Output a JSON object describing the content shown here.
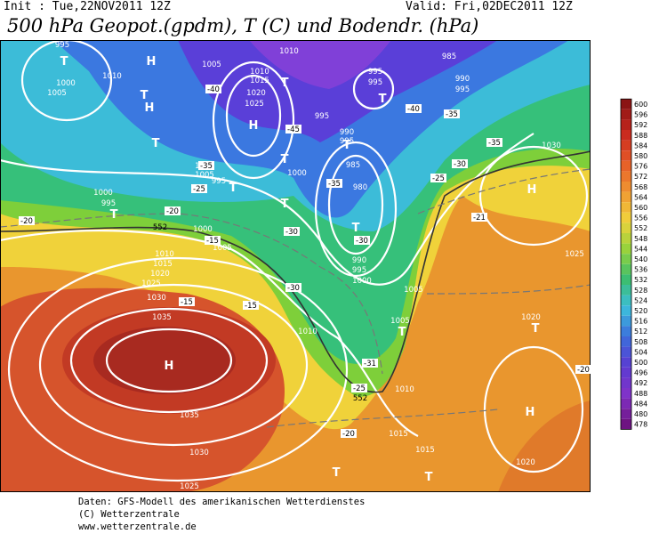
{
  "header": {
    "init": "Init : Tue,22NOV2011 12Z",
    "valid": "Valid: Fri,02DEC2011 12Z",
    "title": "500 hPa Geopot.(gpdm), T (C) und Bodendr. (hPa)"
  },
  "colorbar": [
    "600",
    "596",
    "592",
    "588",
    "584",
    "580",
    "576",
    "572",
    "568",
    "564",
    "560",
    "556",
    "552",
    "548",
    "544",
    "540",
    "536",
    "532",
    "528",
    "524",
    "520",
    "516",
    "512",
    "508",
    "504",
    "500",
    "496",
    "492",
    "488",
    "484",
    "480",
    "478"
  ],
  "map": {
    "labels": [
      "H",
      "H",
      "H",
      "H",
      "H",
      "H",
      "T",
      "T",
      "T",
      "T",
      "T",
      "T",
      "T",
      "T",
      "T",
      "T",
      "T",
      "T",
      "T",
      "T",
      "T",
      "1010",
      "1005",
      "1000",
      "995",
      "1005",
      "1010",
      "1015",
      "1020",
      "1025",
      "1010",
      "995",
      "995",
      "985",
      "990",
      "995",
      "995",
      "990",
      "995",
      "985",
      "980",
      "1000",
      "1010",
      "1005",
      "995",
      "1000",
      "995",
      "1000",
      "1005",
      "1010",
      "1015",
      "1020",
      "1025",
      "1030",
      "1035",
      "1035",
      "1030",
      "1025",
      "990",
      "995",
      "1000",
      "1005",
      "1010",
      "1005",
      "1010",
      "1015",
      "1015",
      "1020",
      "1020",
      "1025",
      "1030",
      "-40",
      "-40",
      "-35",
      "-35",
      "-30",
      "-25",
      "-21",
      "-20",
      "-15",
      "-15",
      "-15",
      "-25",
      "-35",
      "-30",
      "-30",
      "-30",
      "-35",
      "-31",
      "-25",
      "-20",
      "-20",
      "-20",
      "-45",
      "552",
      "552"
    ]
  },
  "footer": [
    "Daten: GFS-Modell des amerikanischen Wetterdienstes",
    "(C) Wetterzentrale",
    "www.wetterzentrale.de"
  ]
}
